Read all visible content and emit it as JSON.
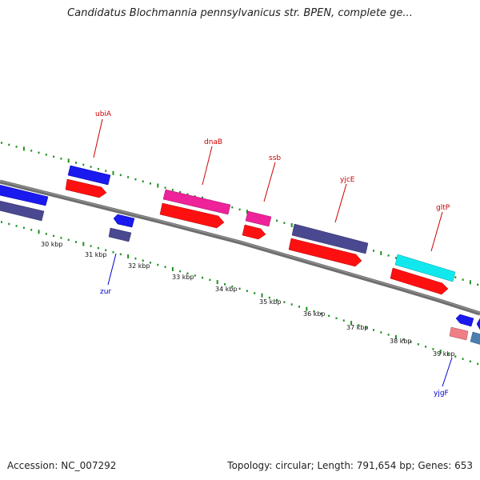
{
  "title": "Candidatus Blochmannia pennsylvanicus str. BPEN, complete ge...",
  "footer": {
    "accession": "Accession: NC_007292",
    "summary": "Topology: circular; Length: 791,654 bp; Genes: 653"
  },
  "colors": {
    "backbone": "#6e6e6e",
    "tick": "#1f8f1f",
    "label_forward": "#cc0000",
    "label_reverse": "#0000cc"
  },
  "ticks": [
    "30 kbp",
    "31 kbp",
    "32 kbp",
    "33 kbp",
    "34 kbp",
    "35 kbp",
    "36 kbp",
    "37 kbp",
    "38 kbp",
    "39 kbp"
  ],
  "gene_labels": [
    {
      "name": "ubiA",
      "strand": "forward"
    },
    {
      "name": "dnaB",
      "strand": "forward"
    },
    {
      "name": "ssb",
      "strand": "forward"
    },
    {
      "name": "yjcE",
      "strand": "forward"
    },
    {
      "name": "gltP",
      "strand": "forward"
    },
    {
      "name": "zur",
      "strand": "reverse"
    },
    {
      "name": "yjgF",
      "strand": "reverse"
    }
  ]
}
